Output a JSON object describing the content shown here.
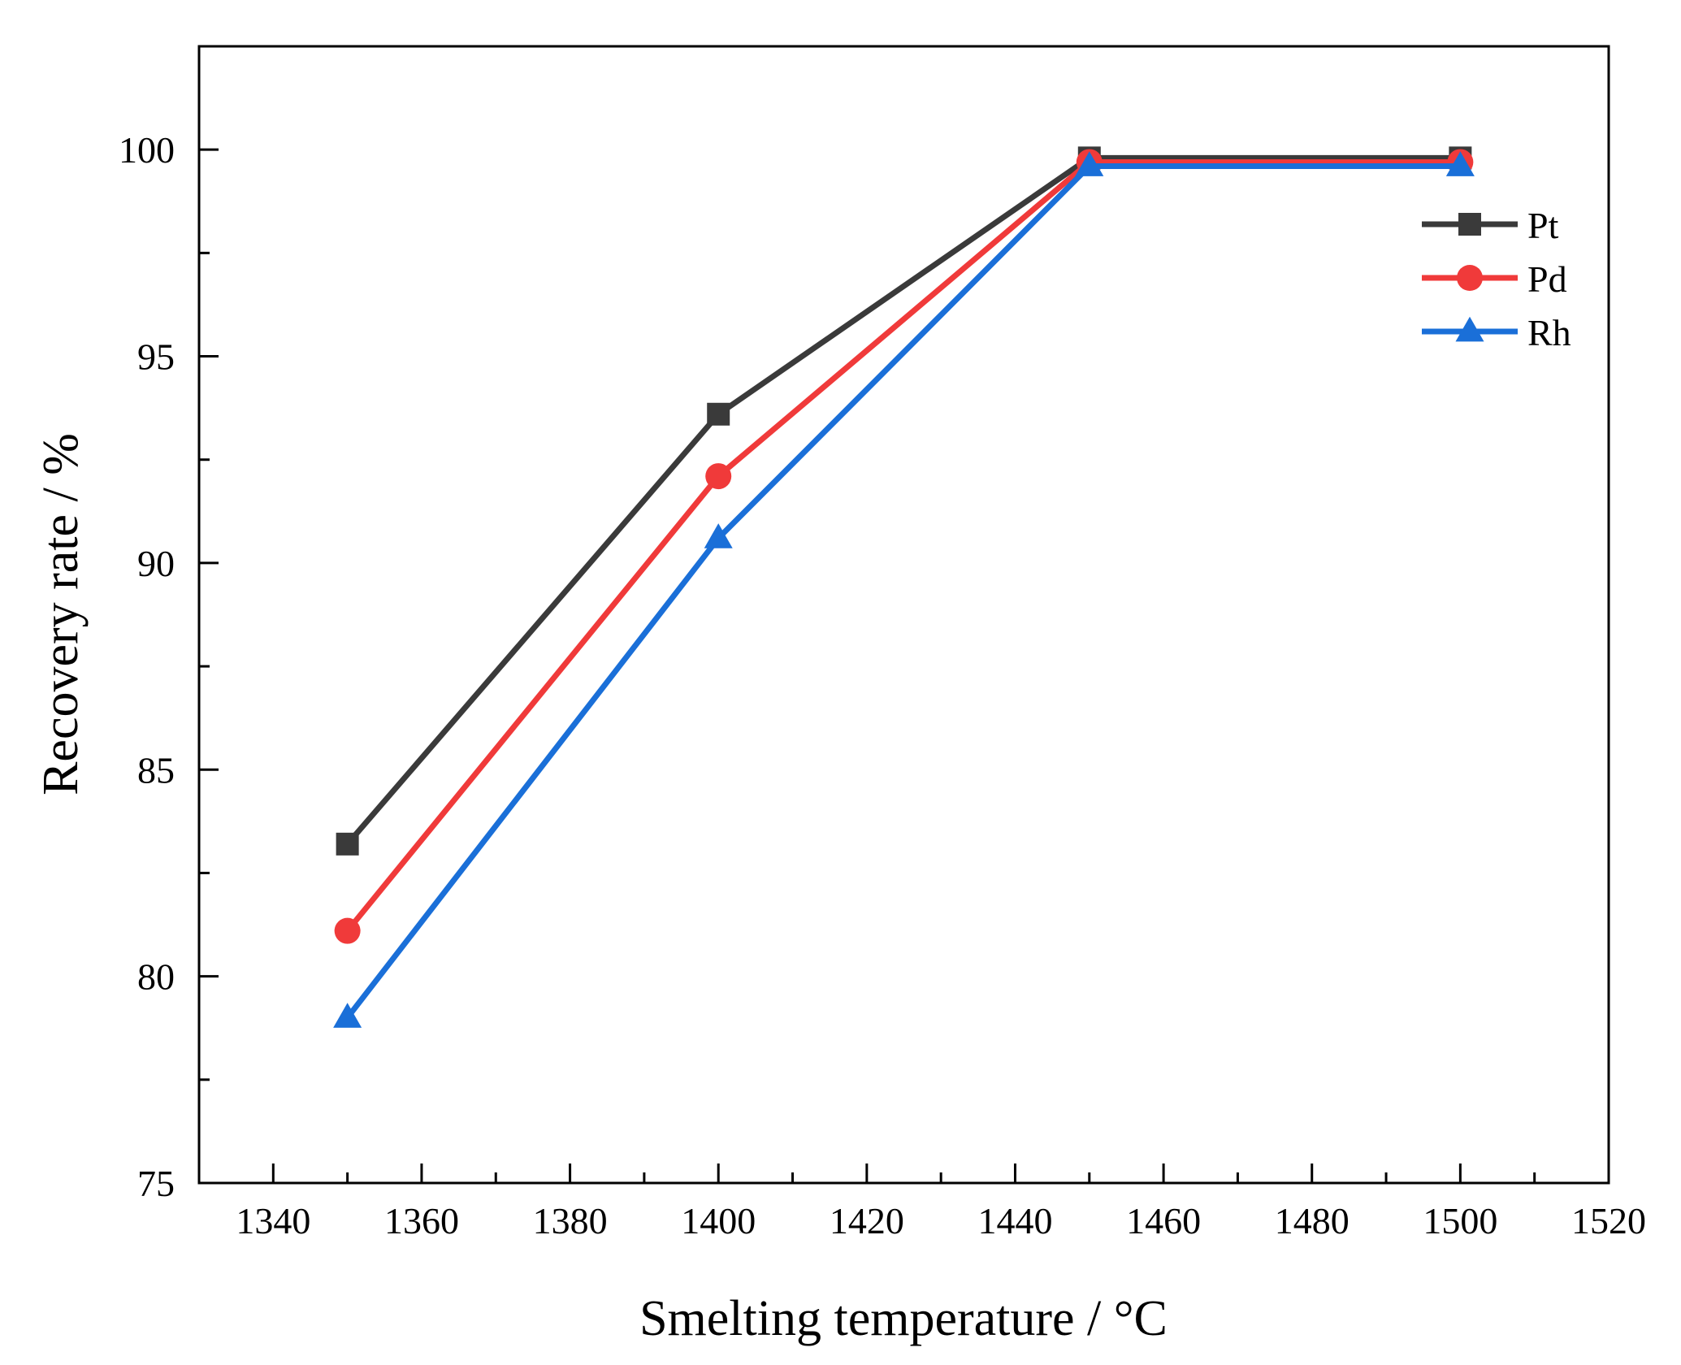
{
  "chart_data": {
    "type": "line",
    "title": "",
    "xlabel": "Smelting temperature / °C",
    "ylabel": "Recovery rate / %",
    "xlim": [
      1330,
      1520
    ],
    "ylim": [
      75,
      102.5
    ],
    "x_ticks": [
      1340,
      1360,
      1380,
      1400,
      1420,
      1440,
      1460,
      1480,
      1500,
      1520
    ],
    "y_ticks": [
      75,
      80,
      85,
      90,
      95,
      100
    ],
    "x": [
      1350,
      1400,
      1450,
      1500
    ],
    "series": [
      {
        "name": "Pt",
        "marker": "square",
        "color": "#3a3a3a",
        "values": [
          83.2,
          93.6,
          99.8,
          99.8
        ]
      },
      {
        "name": "Pd",
        "marker": "circle",
        "color": "#f03a3a",
        "values": [
          81.1,
          92.1,
          99.7,
          99.7
        ]
      },
      {
        "name": "Rh",
        "marker": "triangle",
        "color": "#1a6fd8",
        "values": [
          79.0,
          90.6,
          99.6,
          99.6
        ]
      }
    ],
    "legend_position": "top-right",
    "grid": false
  }
}
